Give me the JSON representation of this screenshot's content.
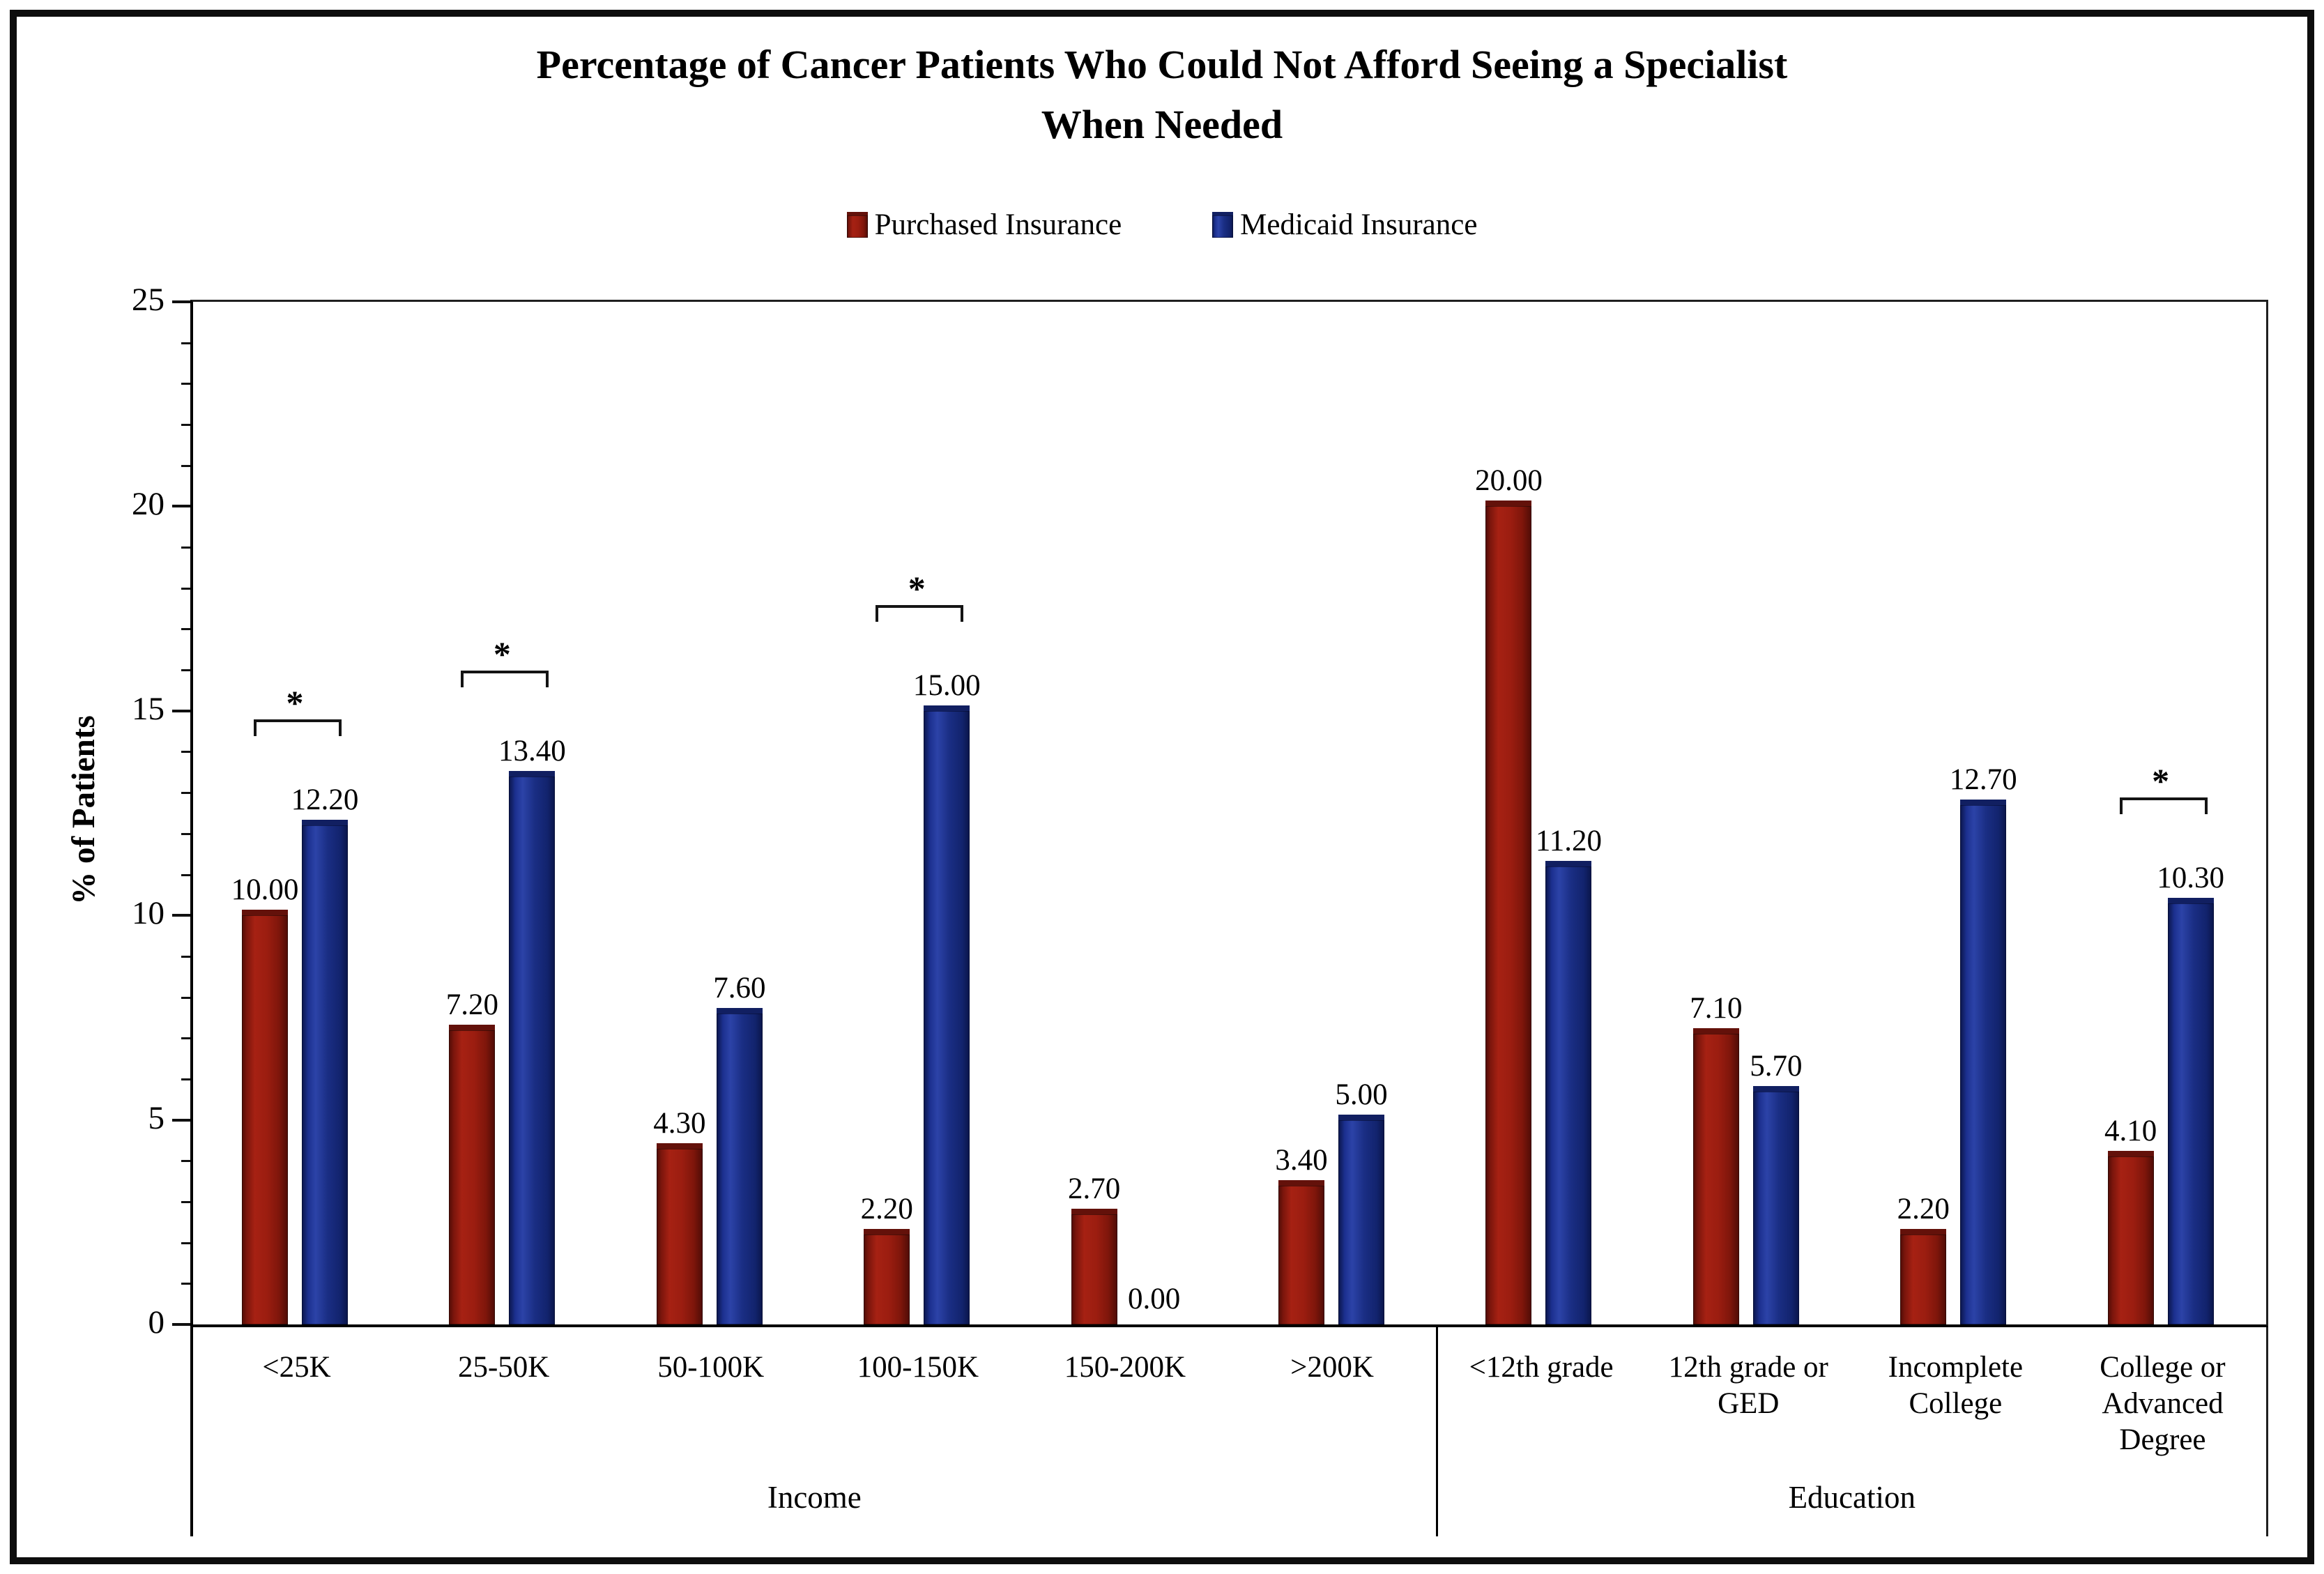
{
  "title_lines": [
    "Percentage of Cancer Patients Who Could Not Afford Seeing a Specialist",
    "When Needed"
  ],
  "chart_data": {
    "type": "bar",
    "title": "Percentage of Cancer Patients Who Could Not Afford Seeing a Specialist When Needed",
    "xlabel": "",
    "ylabel": "% of Patients",
    "ylim": [
      0,
      25
    ],
    "yticks": [
      0,
      5,
      10,
      15,
      20,
      25
    ],
    "minor_tick_step": 1,
    "grid": false,
    "legend_position": "top-center",
    "bar_value_labels": true,
    "value_label_decimals": 2,
    "groups": [
      "Income",
      "Education"
    ],
    "categories": [
      "<25K",
      "25-50K",
      "50-100K",
      "100-150K",
      "150-200K",
      ">200K",
      "<12th grade",
      "12th grade or GED",
      "Incomplete College",
      "College or Advanced Degree"
    ],
    "category_group_index": [
      0,
      0,
      0,
      0,
      0,
      0,
      1,
      1,
      1,
      1
    ],
    "series": [
      {
        "name": "Purchased Insurance",
        "color": "#9B1D10",
        "values": [
          10.0,
          7.2,
          4.3,
          2.2,
          2.7,
          3.4,
          20.0,
          7.1,
          2.2,
          4.1
        ]
      },
      {
        "name": "Medicaid Insurance",
        "color": "#16277E",
        "values": [
          12.2,
          13.4,
          7.6,
          15.0,
          0.0,
          5.0,
          11.2,
          5.7,
          12.7,
          10.3
        ]
      }
    ],
    "significance_asterisk": [
      true,
      true,
      false,
      true,
      false,
      false,
      false,
      false,
      false,
      true
    ],
    "significance_symbol": "*"
  }
}
